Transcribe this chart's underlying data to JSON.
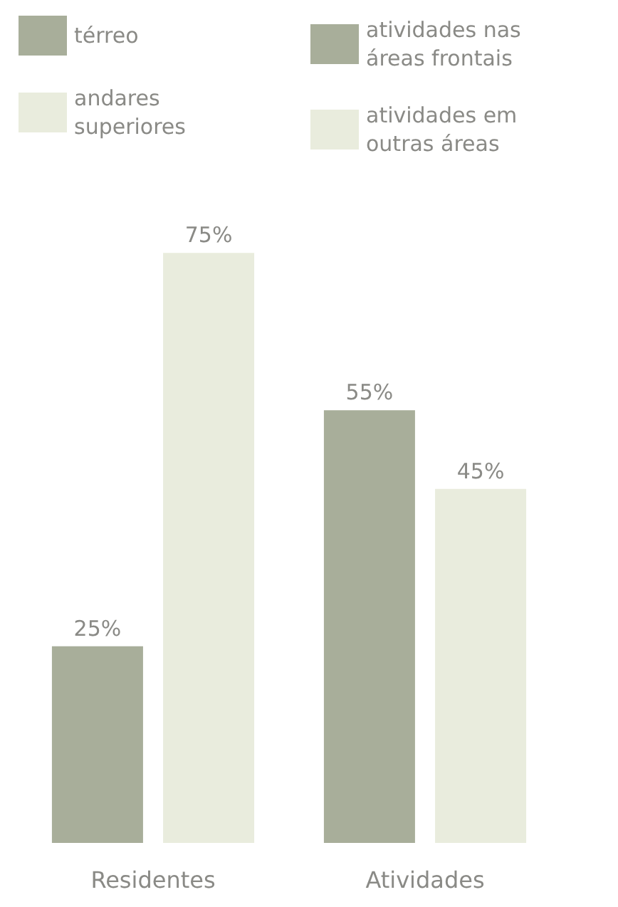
{
  "chart_data": {
    "type": "bar",
    "categories": [
      "Residentes",
      "Atividades"
    ],
    "series": [
      {
        "name": "térreo",
        "color": "#a8ae9a",
        "values": [
          25,
          null
        ],
        "value_labels": [
          "25%",
          null
        ]
      },
      {
        "name": "andares superiores",
        "color": "#e9ecdd",
        "values": [
          75,
          null
        ],
        "value_labels": [
          "75%",
          null
        ]
      },
      {
        "name": "atividades nas áreas frontais",
        "color": "#a8ae9a",
        "values": [
          null,
          55
        ],
        "value_labels": [
          null,
          "55%"
        ]
      },
      {
        "name": "atividades em outras áreas",
        "color": "#e9ecdd",
        "values": [
          null,
          45
        ],
        "value_labels": [
          null,
          "45%"
        ]
      }
    ],
    "legend": "top"
  }
}
